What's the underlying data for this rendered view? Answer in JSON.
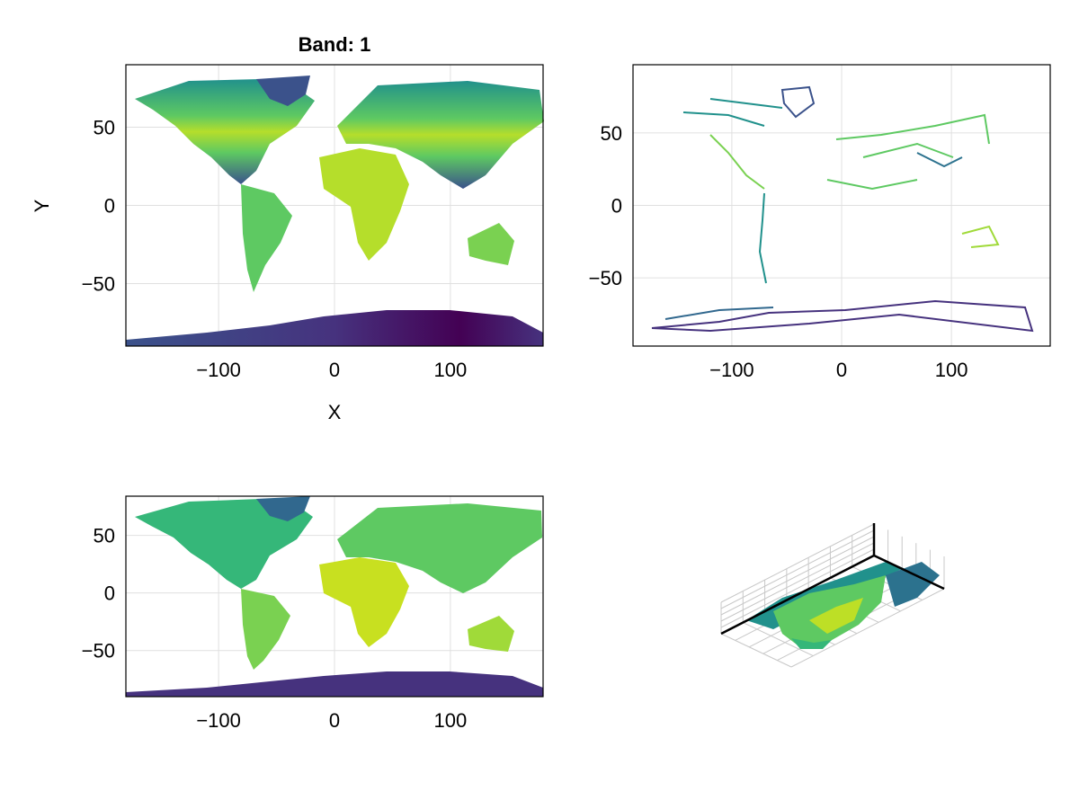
{
  "figure": {
    "colormap": [
      "#440154",
      "#3b528b",
      "#21918c",
      "#5ec962",
      "#fde725"
    ]
  },
  "chart_data": [
    {
      "type": "heatmap",
      "title": "Band: 1",
      "xlabel": "X",
      "ylabel": "Y",
      "xlim": [
        -180,
        180
      ],
      "ylim": [
        -90,
        90
      ],
      "xticks": [
        -100,
        0,
        100
      ],
      "yticks": [
        -50,
        0,
        50
      ],
      "xtick_labels": [
        "−100",
        "0",
        "100"
      ],
      "ytick_labels": [
        "−50",
        "0",
        "50"
      ],
      "grid": true
    },
    {
      "type": "line",
      "title": "",
      "xlim": [
        -190,
        190
      ],
      "ylim": [
        -97,
        97
      ],
      "xticks": [
        -100,
        0,
        100
      ],
      "yticks": [
        -50,
        0,
        50
      ],
      "xtick_labels": [
        "−100",
        "0",
        "100"
      ],
      "ytick_labels": [
        "−50",
        "0",
        "50"
      ],
      "grid": true
    },
    {
      "type": "heatmap",
      "title": "",
      "xlim": [
        -180,
        180
      ],
      "ylim": [
        -90,
        84
      ],
      "xticks": [
        -100,
        0,
        100
      ],
      "yticks": [
        -50,
        0,
        50
      ],
      "xtick_labels": [
        "−100",
        "0",
        "100"
      ],
      "ytick_labels": [
        "−50",
        "0",
        "50"
      ],
      "grid": true
    },
    {
      "type": "surface",
      "title": "",
      "grid": true
    }
  ]
}
